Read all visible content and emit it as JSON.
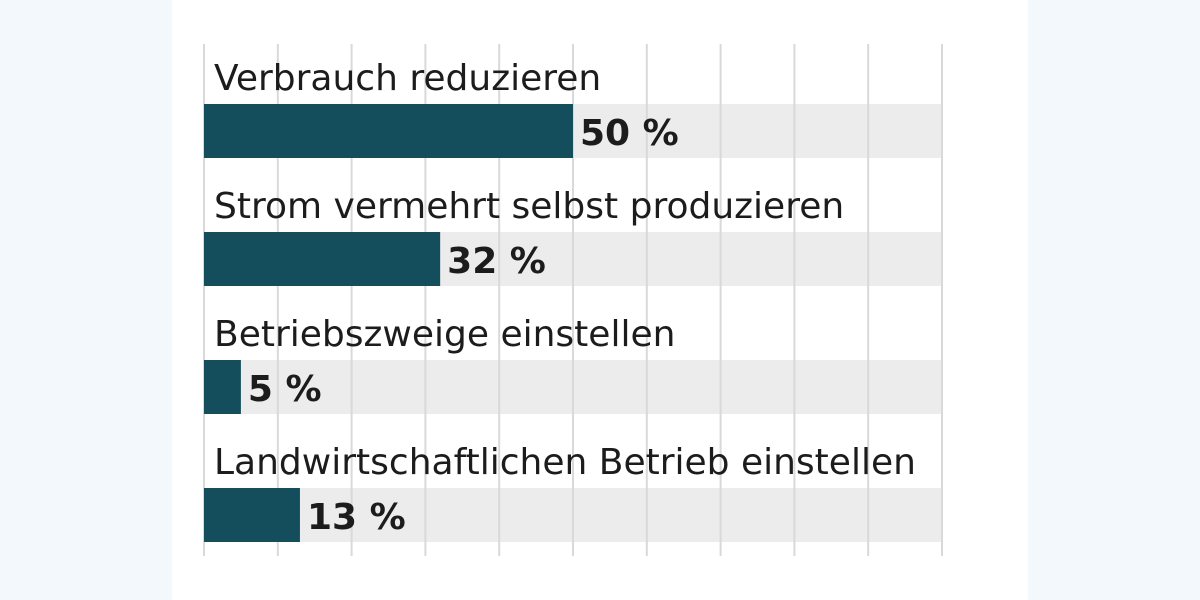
{
  "chart_data": {
    "type": "bar",
    "orientation": "horizontal",
    "categories": [
      "Verbrauch reduzieren",
      "Strom vermehrt selbst produzieren",
      "Betriebszweige einstellen",
      "Landwirtschaftlichen Betrieb einstellen"
    ],
    "values": [
      50,
      32,
      5,
      13
    ],
    "value_labels": [
      "50 %",
      "32 %",
      "5 %",
      "13 %"
    ],
    "unit": "%",
    "xlim": [
      0,
      100
    ],
    "grid": true,
    "colors": {
      "bar": "#144d5c",
      "track": "#ececec",
      "grid": "#d9d9d9",
      "text": "#1c1c1c"
    }
  }
}
